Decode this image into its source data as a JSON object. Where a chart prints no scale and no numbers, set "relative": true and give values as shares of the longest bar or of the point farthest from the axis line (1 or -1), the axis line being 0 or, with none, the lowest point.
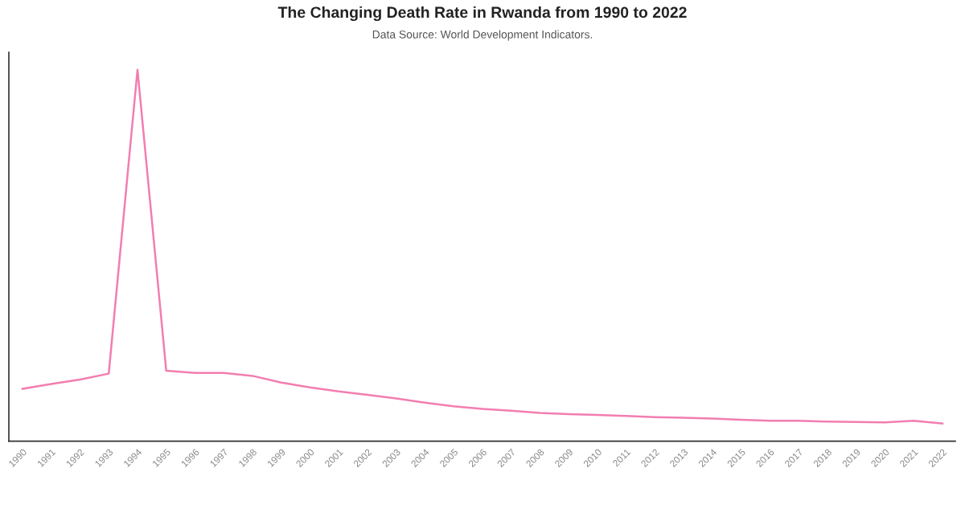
{
  "chart_data": {
    "type": "line",
    "title": "The Changing Death Rate in Rwanda from 1990 to 2022",
    "subtitle": "Data Source: World Development Indicators.",
    "relative": true,
    "categories": [
      "1990",
      "1991",
      "1992",
      "1993",
      "1994",
      "1995",
      "1996",
      "1997",
      "1998",
      "1999",
      "2000",
      "2001",
      "2002",
      "2003",
      "2004",
      "2005",
      "2006",
      "2007",
      "2008",
      "2009",
      "2010",
      "2011",
      "2012",
      "2013",
      "2014",
      "2015",
      "2016",
      "2017",
      "2018",
      "2019",
      "2020",
      "2021",
      "2022"
    ],
    "series": [
      {
        "color": "#f27eb0",
        "values": [
          0.141,
          0.154,
          0.166,
          0.182,
          1,
          0.19,
          0.184,
          0.184,
          0.176,
          0.158,
          0.145,
          0.134,
          0.125,
          0.115,
          0.104,
          0.094,
          0.087,
          0.082,
          0.076,
          0.073,
          0.071,
          0.068,
          0.065,
          0.063,
          0.061,
          0.058,
          0.055,
          0.055,
          0.053,
          0.052,
          0.051,
          0.055,
          0.048
        ]
      }
    ],
    "grid": false,
    "marker": "none",
    "line_style": "solid"
  }
}
